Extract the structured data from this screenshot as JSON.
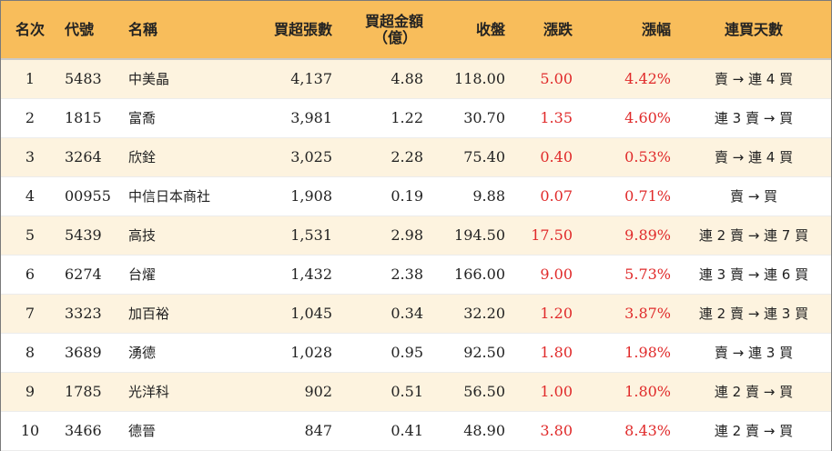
{
  "table": {
    "headers": {
      "rank": "名次",
      "code": "代號",
      "name": "名稱",
      "net_lots": "買超張數",
      "net_amount_line1": "買超金額",
      "net_amount_line2": "（億）",
      "close": "收盤",
      "change": "漲跌",
      "pct": "漲幅",
      "days": "連買天數"
    },
    "rows": [
      {
        "rank": "1",
        "code": "5483",
        "name": "中美晶",
        "net_lots": "4,137",
        "net_amount": "4.88",
        "close": "118.00",
        "change": "5.00",
        "pct": "4.42%",
        "days": "賣 → 連 4 買"
      },
      {
        "rank": "2",
        "code": "1815",
        "name": "富喬",
        "net_lots": "3,981",
        "net_amount": "1.22",
        "close": "30.70",
        "change": "1.35",
        "pct": "4.60%",
        "days": "連 3 賣 → 買"
      },
      {
        "rank": "3",
        "code": "3264",
        "name": "欣銓",
        "net_lots": "3,025",
        "net_amount": "2.28",
        "close": "75.40",
        "change": "0.40",
        "pct": "0.53%",
        "days": "賣 → 連 4 買"
      },
      {
        "rank": "4",
        "code": "00955",
        "name": "中信日本商社",
        "net_lots": "1,908",
        "net_amount": "0.19",
        "close": "9.88",
        "change": "0.07",
        "pct": "0.71%",
        "days": "賣 → 買"
      },
      {
        "rank": "5",
        "code": "5439",
        "name": "高技",
        "net_lots": "1,531",
        "net_amount": "2.98",
        "close": "194.50",
        "change": "17.50",
        "pct": "9.89%",
        "days": "連 2 賣 → 連 7 買"
      },
      {
        "rank": "6",
        "code": "6274",
        "name": "台燿",
        "net_lots": "1,432",
        "net_amount": "2.38",
        "close": "166.00",
        "change": "9.00",
        "pct": "5.73%",
        "days": "連 3 賣 → 連 6 買"
      },
      {
        "rank": "7",
        "code": "3323",
        "name": "加百裕",
        "net_lots": "1,045",
        "net_amount": "0.34",
        "close": "32.20",
        "change": "1.20",
        "pct": "3.87%",
        "days": "連 2 賣 → 連 3 買"
      },
      {
        "rank": "8",
        "code": "3689",
        "name": "湧德",
        "net_lots": "1,028",
        "net_amount": "0.95",
        "close": "92.50",
        "change": "1.80",
        "pct": "1.98%",
        "days": "賣 → 連 3 買"
      },
      {
        "rank": "9",
        "code": "1785",
        "name": "光洋科",
        "net_lots": "902",
        "net_amount": "0.51",
        "close": "56.50",
        "change": "1.00",
        "pct": "1.80%",
        "days": "連 2 賣 → 買"
      },
      {
        "rank": "10",
        "code": "3466",
        "name": "德晉",
        "net_lots": "847",
        "net_amount": "0.41",
        "close": "48.90",
        "change": "3.80",
        "pct": "8.43%",
        "days": "連 2 賣 → 買"
      }
    ]
  },
  "colors": {
    "header_bg": "#f8bd5b",
    "odd_row_bg": "#fdf3df",
    "even_row_bg": "#ffffff",
    "up_color": "#e02a2a"
  }
}
